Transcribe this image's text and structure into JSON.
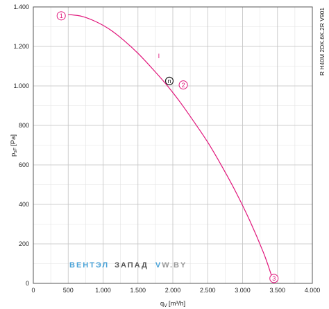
{
  "chart_data": {
    "type": "line",
    "model_code": "R H40M 2DK.6K.2R V901",
    "x_axis": {
      "label_main": "q",
      "label_sub": "V",
      "label_unit": "[m³/h]",
      "ticks": [
        0,
        500,
        1000,
        1500,
        2000,
        2500,
        3000,
        3500,
        4000
      ],
      "tick_labels": [
        "0",
        "500",
        "1.000",
        "1.500",
        "2.000",
        "2.500",
        "3.000",
        "3.500",
        "4.000"
      ],
      "range": [
        0,
        4000
      ],
      "minor_step": 250
    },
    "y_axis": {
      "label_main": "p",
      "label_sub": "sF",
      "label_unit": "[Pa]",
      "ticks": [
        0,
        200,
        400,
        600,
        800,
        1000,
        1200,
        1400
      ],
      "tick_labels": [
        "0",
        "200",
        "400",
        "600",
        "800",
        "1.000",
        "1.200",
        "1.400"
      ],
      "range": [
        0,
        1400
      ],
      "minor_step": 100
    },
    "grid": true,
    "series": [
      {
        "color": "#e0147a",
        "points": [
          [
            500,
            1362
          ],
          [
            700,
            1352
          ],
          [
            900,
            1325
          ],
          [
            1100,
            1285
          ],
          [
            1300,
            1230
          ],
          [
            1500,
            1165
          ],
          [
            1700,
            1090
          ],
          [
            1900,
            1010
          ],
          [
            2100,
            920
          ],
          [
            2300,
            820
          ],
          [
            2500,
            715
          ],
          [
            2700,
            595
          ],
          [
            2900,
            465
          ],
          [
            3100,
            320
          ],
          [
            3300,
            155
          ],
          [
            3400,
            55
          ],
          [
            3450,
            0
          ]
        ]
      }
    ],
    "point_markers": [
      {
        "label": "1",
        "x": 400,
        "y": 1355,
        "color": "#e0147a"
      },
      {
        "label": "2",
        "x": 2150,
        "y": 1005,
        "color": "#e0147a"
      },
      {
        "label": "3",
        "x": 3450,
        "y": 25,
        "color": "#e0147a"
      }
    ],
    "operating_point": {
      "label": "n",
      "x": 1950,
      "y": 1025,
      "color": "#222222"
    },
    "annotation": {
      "text": "I",
      "x": 1800,
      "y": 1140,
      "color": "#e0147a"
    }
  },
  "watermark": {
    "part1": "ВЕНТ",
    "part2": "ЭЛ",
    "part3": "ЗАПАД",
    "part4": "V",
    "part5": "W.BY",
    "color1": "#4aa3d8",
    "color2": "#555555",
    "color3": "#9a9a9a"
  }
}
